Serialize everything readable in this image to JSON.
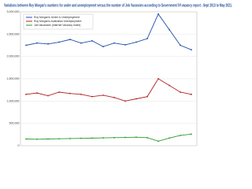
{
  "chart_data": {
    "type": "line",
    "title": "Variations between Roy Morgan's numbers for under and unemployment versus the number of Job Vacancies according to Government IVI vacancy report - Sept 2013 to May 2021.",
    "categories": [
      null,
      null,
      null,
      null,
      null,
      null,
      null,
      null,
      null,
      null,
      null,
      null,
      null,
      null,
      null,
      null
    ],
    "series": [
      {
        "name": "Roy Morgan's Under & Unemployment",
        "color": "#1f4ea8",
        "values": [
          2250000,
          2300000,
          2280000,
          2320000,
          2380000,
          2300000,
          2350000,
          2220000,
          2300000,
          2260000,
          2320000,
          2400000,
          2950000,
          2600000,
          2250000,
          2150000
        ]
      },
      {
        "name": "Roy Morgan's Australian Unemployment",
        "color": "#b22222",
        "values": [
          1150000,
          1180000,
          1120000,
          1200000,
          1170000,
          1150000,
          1100000,
          1130000,
          1080000,
          1000000,
          1050000,
          1100000,
          1500000,
          1350000,
          1200000,
          1150000
        ]
      },
      {
        "name": "Job Vacancies (Internet Vacancy Index)",
        "color": "#2e9b2e",
        "values": [
          150000,
          145000,
          150000,
          155000,
          160000,
          165000,
          170000,
          175000,
          180000,
          185000,
          190000,
          180000,
          100000,
          170000,
          230000,
          260000
        ]
      }
    ],
    "ylim": [
      0,
      3000000
    ],
    "yticks": [
      {
        "value": 0,
        "label": "0"
      },
      {
        "value": 500000,
        "label": "500,000"
      },
      {
        "value": 1000000,
        "label": "1,000,000"
      },
      {
        "value": 1500000,
        "label": "1,500,000"
      },
      {
        "value": 2000000,
        "label": "2,000,000"
      },
      {
        "value": 2500000,
        "label": "2,500,000"
      },
      {
        "value": 3000000,
        "label": "3,000,000"
      }
    ],
    "grid": true
  }
}
